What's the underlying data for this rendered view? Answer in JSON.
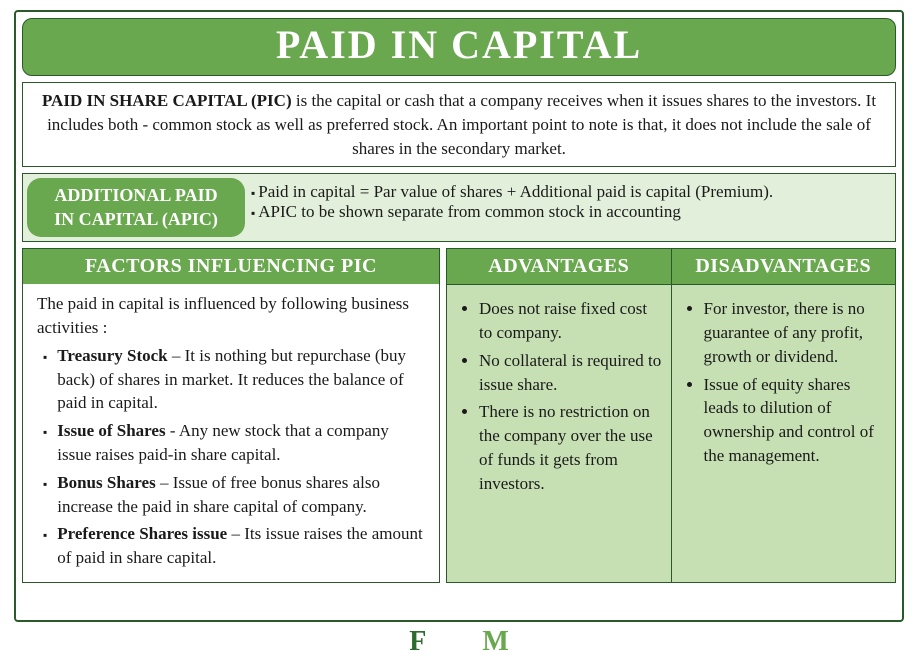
{
  "title": "PAID IN CAPITAL",
  "definition": {
    "lead_bold": "PAID IN SHARE CAPITAL (PIC)",
    "rest": " is the capital or cash that a company receives when it issues shares to the investors. It includes both - common stock as well as preferred stock. An important point to note is that, it does not include the sale of shares in the secondary market."
  },
  "apic": {
    "label_l1": "ADDITIONAL PAID",
    "label_l2": "IN CAPITAL (APIC)",
    "bullets": [
      "Paid in capital = Par value of shares + Additional paid is capital (Premium).",
      "APIC to be shown separate from common stock in accounting"
    ]
  },
  "factors": {
    "header": "FACTORS INFLUENCING PIC",
    "intro": "The paid in capital is influenced by following business activities :",
    "items": [
      {
        "bold": "Treasury Stock",
        "rest": " – It is nothing but repurchase (buy back) of shares in market. It reduces the balance of paid in capital."
      },
      {
        "bold": "Issue of Shares",
        "rest": " -  Any new stock that a company issue raises paid-in share capital."
      },
      {
        "bold": "Bonus Shares",
        "rest": " – Issue of free bonus shares also increase the paid in share capital of company."
      },
      {
        "bold": "Preference Shares issue",
        "rest": " – Its issue raises the amount of paid in share capital."
      }
    ]
  },
  "advantages": {
    "header": "ADVANTAGES",
    "items": [
      "Does not raise fixed cost to company.",
      "No collateral is required to issue share.",
      "There is no restriction on the company over the use of funds it gets from investors."
    ]
  },
  "disadvantages": {
    "header": "DISADVANTAGES",
    "items": [
      "For investor, there is no guarantee of any profit, growth or dividend.",
      "Issue of equity shares leads to dilution of ownership and control of the management."
    ]
  },
  "footer": {
    "f": "F",
    "m": "M"
  },
  "colors": {
    "primary_green": "#6aa84f",
    "dark_border": "#2a5a2a",
    "light_green_bg": "#e2efda",
    "adv_bg": "#c6e0b4"
  }
}
